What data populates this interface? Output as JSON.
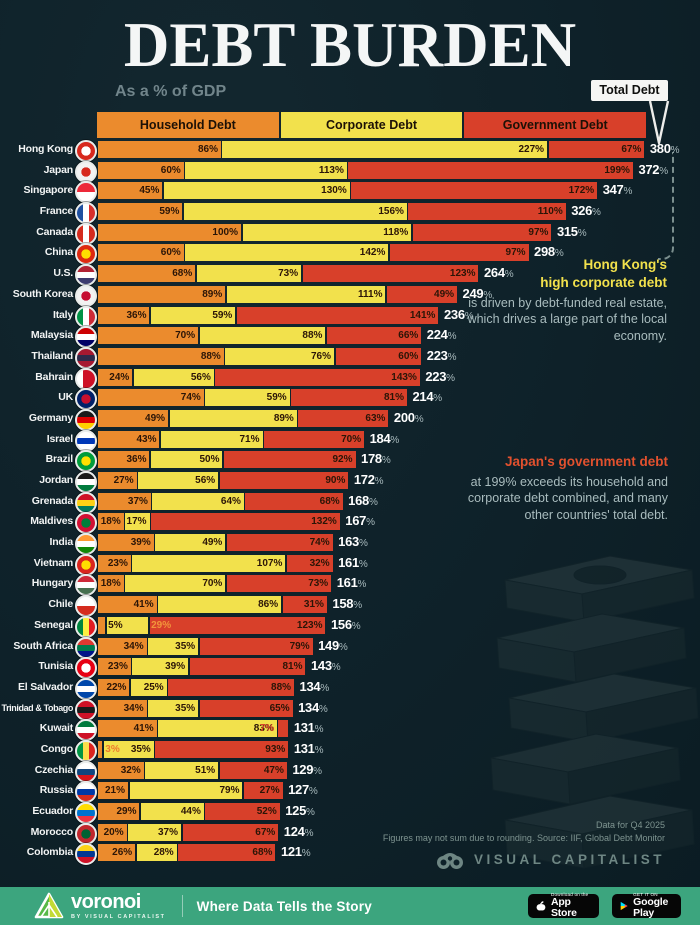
{
  "page": {
    "title": "DEBT BURDEN",
    "subtitle": "As a % of GDP"
  },
  "legend": {
    "items": [
      {
        "label": "Household Debt",
        "color": "#EB8B2D"
      },
      {
        "label": "Corporate Debt",
        "color": "#F2E14C"
      },
      {
        "label": "Government Debt",
        "color": "#D8402A"
      }
    ],
    "total_label": "Total Debt"
  },
  "chart_data": {
    "type": "bar",
    "orientation": "horizontal",
    "stacked": true,
    "unit": "% of GDP",
    "series_names": [
      "Household Debt",
      "Corporate Debt",
      "Government Debt"
    ],
    "sort": "total debt descending",
    "rows": [
      {
        "country": "Hong Kong",
        "household": 86,
        "corporate": 227,
        "government": 67,
        "total": 380,
        "flag": {
          "t": "d",
          "c": [
            "#D7281D",
            "#FFFFFF"
          ]
        }
      },
      {
        "country": "Japan",
        "household": 60,
        "corporate": 113,
        "government": 199,
        "total": 372,
        "flag": {
          "t": "d",
          "c": [
            "#F2F2F2",
            "#D7281D"
          ]
        }
      },
      {
        "country": "Singapore",
        "household": 45,
        "corporate": 130,
        "government": 172,
        "total": 347,
        "flag": {
          "t": "h",
          "c": [
            "#ED2939",
            "#FFFFFF"
          ]
        }
      },
      {
        "country": "France",
        "household": 59,
        "corporate": 156,
        "government": 110,
        "total": 326,
        "flag": {
          "t": "v",
          "c": [
            "#1E50A0",
            "#FFFFFF",
            "#D8302B"
          ]
        }
      },
      {
        "country": "Canada",
        "household": 100,
        "corporate": 118,
        "government": 97,
        "total": 315,
        "flag": {
          "t": "v",
          "c": [
            "#D52B1E",
            "#FFFFFF",
            "#D52B1E"
          ]
        }
      },
      {
        "country": "China",
        "household": 60,
        "corporate": 142,
        "government": 97,
        "total": 298,
        "flag": {
          "t": "d",
          "c": [
            "#DE2910",
            "#FFDE00"
          ]
        }
      },
      {
        "country": "U.S.",
        "household": 68,
        "corporate": 73,
        "government": 123,
        "total": 264,
        "flag": {
          "t": "h",
          "c": [
            "#B22234",
            "#FFFFFF",
            "#3C3B6E"
          ]
        }
      },
      {
        "country": "South Korea",
        "household": 89,
        "corporate": 111,
        "government": 49,
        "total": 249,
        "flag": {
          "t": "d",
          "c": [
            "#F2F2F2",
            "#C60C30"
          ]
        }
      },
      {
        "country": "Italy",
        "household": 36,
        "corporate": 59,
        "government": 141,
        "total": 236,
        "flag": {
          "t": "v",
          "c": [
            "#009246",
            "#FFFFFF",
            "#CE2B37"
          ]
        }
      },
      {
        "country": "Malaysia",
        "household": 70,
        "corporate": 88,
        "government": 66,
        "total": 224,
        "flag": {
          "t": "h",
          "c": [
            "#CC0001",
            "#FFFFFF",
            "#010066"
          ]
        }
      },
      {
        "country": "Thailand",
        "household": 88,
        "corporate": 76,
        "government": 60,
        "total": 223,
        "flag": {
          "t": "h",
          "c": [
            "#A51931",
            "#2D2A4A",
            "#A51931"
          ]
        }
      },
      {
        "country": "Bahrain",
        "household": 24,
        "corporate": 56,
        "government": 143,
        "total": 223,
        "flag": {
          "t": "v",
          "c": [
            "#FFFFFF",
            "#CE1126",
            "#CE1126"
          ]
        }
      },
      {
        "country": "UK",
        "household": 74,
        "corporate": 59,
        "government": 81,
        "total": 214,
        "flag": {
          "t": "d",
          "c": [
            "#012169",
            "#C8102E"
          ]
        }
      },
      {
        "country": "Germany",
        "household": 49,
        "corporate": 89,
        "government": 63,
        "total": 200,
        "flag": {
          "t": "h",
          "c": [
            "#1A1A1A",
            "#DD0000",
            "#FFCE00"
          ]
        }
      },
      {
        "country": "Israel",
        "household": 43,
        "corporate": 71,
        "government": 70,
        "total": 184,
        "flag": {
          "t": "h",
          "c": [
            "#FFFFFF",
            "#0038B8",
            "#FFFFFF"
          ]
        }
      },
      {
        "country": "Brazil",
        "household": 36,
        "corporate": 50,
        "government": 92,
        "total": 178,
        "flag": {
          "t": "d",
          "c": [
            "#009C3B",
            "#FFDF00"
          ]
        }
      },
      {
        "country": "Jordan",
        "household": 27,
        "corporate": 56,
        "government": 90,
        "total": 172,
        "flag": {
          "t": "h",
          "c": [
            "#1A1A1A",
            "#FFFFFF",
            "#007A3D"
          ]
        }
      },
      {
        "country": "Grenada",
        "household": 37,
        "corporate": 64,
        "government": 68,
        "total": 168,
        "flag": {
          "t": "h",
          "c": [
            "#CE1126",
            "#FCD116",
            "#007A5E"
          ]
        }
      },
      {
        "country": "Maldives",
        "household": 18,
        "corporate": 17,
        "government": 132,
        "total": 167,
        "flag": {
          "t": "d",
          "c": [
            "#D21034",
            "#007E3A"
          ]
        }
      },
      {
        "country": "India",
        "household": 39,
        "corporate": 49,
        "government": 74,
        "total": 163,
        "flag": {
          "t": "h",
          "c": [
            "#FF9933",
            "#FFFFFF",
            "#138808"
          ]
        }
      },
      {
        "country": "Vietnam",
        "household": 23,
        "corporate": 107,
        "government": 32,
        "total": 161,
        "flag": {
          "t": "d",
          "c": [
            "#DA251D",
            "#FFDE00"
          ]
        }
      },
      {
        "country": "Hungary",
        "household": 18,
        "corporate": 70,
        "government": 73,
        "total": 161,
        "flag": {
          "t": "h",
          "c": [
            "#CE2939",
            "#FFFFFF",
            "#477050"
          ]
        }
      },
      {
        "country": "Chile",
        "household": 41,
        "corporate": 86,
        "government": 31,
        "total": 158,
        "flag": {
          "t": "h",
          "c": [
            "#FFFFFF",
            "#D52B1E"
          ]
        }
      },
      {
        "country": "Senegal",
        "household": 5,
        "corporate": 29,
        "government": 123,
        "total": 156,
        "flag": {
          "t": "v",
          "c": [
            "#00853F",
            "#FDEF42",
            "#E31B23"
          ]
        },
        "lo": {
          "household": {
            "pos": "after"
          },
          "corporate": {
            "pos": "after",
            "color": "#F2953B"
          }
        }
      },
      {
        "country": "South Africa",
        "household": 34,
        "corporate": 35,
        "government": 79,
        "total": 149,
        "flag": {
          "t": "h",
          "c": [
            "#DE3831",
            "#007A4D",
            "#001489"
          ]
        }
      },
      {
        "country": "Tunisia",
        "household": 23,
        "corporate": 39,
        "government": 81,
        "total": 143,
        "flag": {
          "t": "d",
          "c": [
            "#E70013",
            "#FFFFFF"
          ]
        }
      },
      {
        "country": "El Salvador",
        "household": 22,
        "corporate": 25,
        "government": 88,
        "total": 134,
        "flag": {
          "t": "h",
          "c": [
            "#0047AB",
            "#FFFFFF",
            "#0047AB"
          ]
        }
      },
      {
        "country": "Trinidad & Tobago",
        "household": 34,
        "corporate": 35,
        "government": 65,
        "total": 134,
        "flag": {
          "t": "h",
          "c": [
            "#CE1126",
            "#1A1A1A",
            "#CE1126"
          ]
        }
      },
      {
        "country": "Kuwait",
        "household": 41,
        "corporate": 83,
        "government": 7,
        "total": 131,
        "flag": {
          "t": "h",
          "c": [
            "#007A3D",
            "#FFFFFF",
            "#CE1126"
          ]
        },
        "lo": {
          "government": {
            "pos": "before",
            "color": "#D8432A"
          }
        }
      },
      {
        "country": "Congo",
        "household": 3,
        "corporate": 35,
        "government": 93,
        "total": 131,
        "flag": {
          "t": "v",
          "c": [
            "#009543",
            "#FBDE4A",
            "#DC241F"
          ]
        },
        "lo": {
          "household": {
            "pos": "after",
            "color": "#ED7A2F"
          }
        }
      },
      {
        "country": "Czechia",
        "household": 32,
        "corporate": 51,
        "government": 47,
        "total": 129,
        "flag": {
          "t": "h",
          "c": [
            "#FFFFFF",
            "#11457E",
            "#D7141A"
          ]
        }
      },
      {
        "country": "Russia",
        "household": 21,
        "corporate": 79,
        "government": 27,
        "total": 127,
        "flag": {
          "t": "h",
          "c": [
            "#FFFFFF",
            "#0039A6",
            "#D52B1E"
          ]
        }
      },
      {
        "country": "Ecuador",
        "household": 29,
        "corporate": 44,
        "government": 52,
        "total": 125,
        "flag": {
          "t": "h",
          "c": [
            "#FFDD00",
            "#0072CE",
            "#EF3340"
          ]
        }
      },
      {
        "country": "Morocco",
        "household": 20,
        "corporate": 37,
        "government": 67,
        "total": 124,
        "flag": {
          "t": "d",
          "c": [
            "#C1272D",
            "#006233"
          ]
        }
      },
      {
        "country": "Colombia",
        "household": 26,
        "corporate": 28,
        "government": 68,
        "total": 121,
        "flag": {
          "t": "h",
          "c": [
            "#FCD116",
            "#003893",
            "#CE1126"
          ]
        }
      }
    ]
  },
  "annotations": {
    "hong_kong": {
      "heading": "Hong Kong's\nhigh corporate debt",
      "body": "is driven by debt-funded real estate, which drives a large part of the local economy.",
      "heading_color": "#F2E14C"
    },
    "japan": {
      "heading": "Japan's government debt",
      "body": "at 199% exceeds its household and corporate debt combined, and many other countries' total debt.",
      "heading_color": "#E2512E"
    }
  },
  "footer": {
    "note_line1": "Data for Q4 2025",
    "note_line2": "Figures may not sum due to rounding. Source: IIF, Global Debt Monitor",
    "brand": "VISUAL CAPITALIST"
  },
  "bottom_bar": {
    "logo": "voronoi",
    "logo_sub": "BY VISUAL CAPITALIST",
    "tagline": "Where Data Tells the Story",
    "appstore_line1": "Download on the",
    "appstore_line2": "App Store",
    "gplay_line1": "GET IT ON",
    "gplay_line2": "Google Play"
  },
  "colors": {
    "background": "#0E2129",
    "household": "#EB8B2D",
    "corporate": "#F2E14C",
    "government": "#D8402A",
    "bar_label": "#2B1507",
    "total_number": "#FFFFFF",
    "total_percent_sign": "#A9BABD",
    "bottom_bar_green": "#3CA57E"
  }
}
